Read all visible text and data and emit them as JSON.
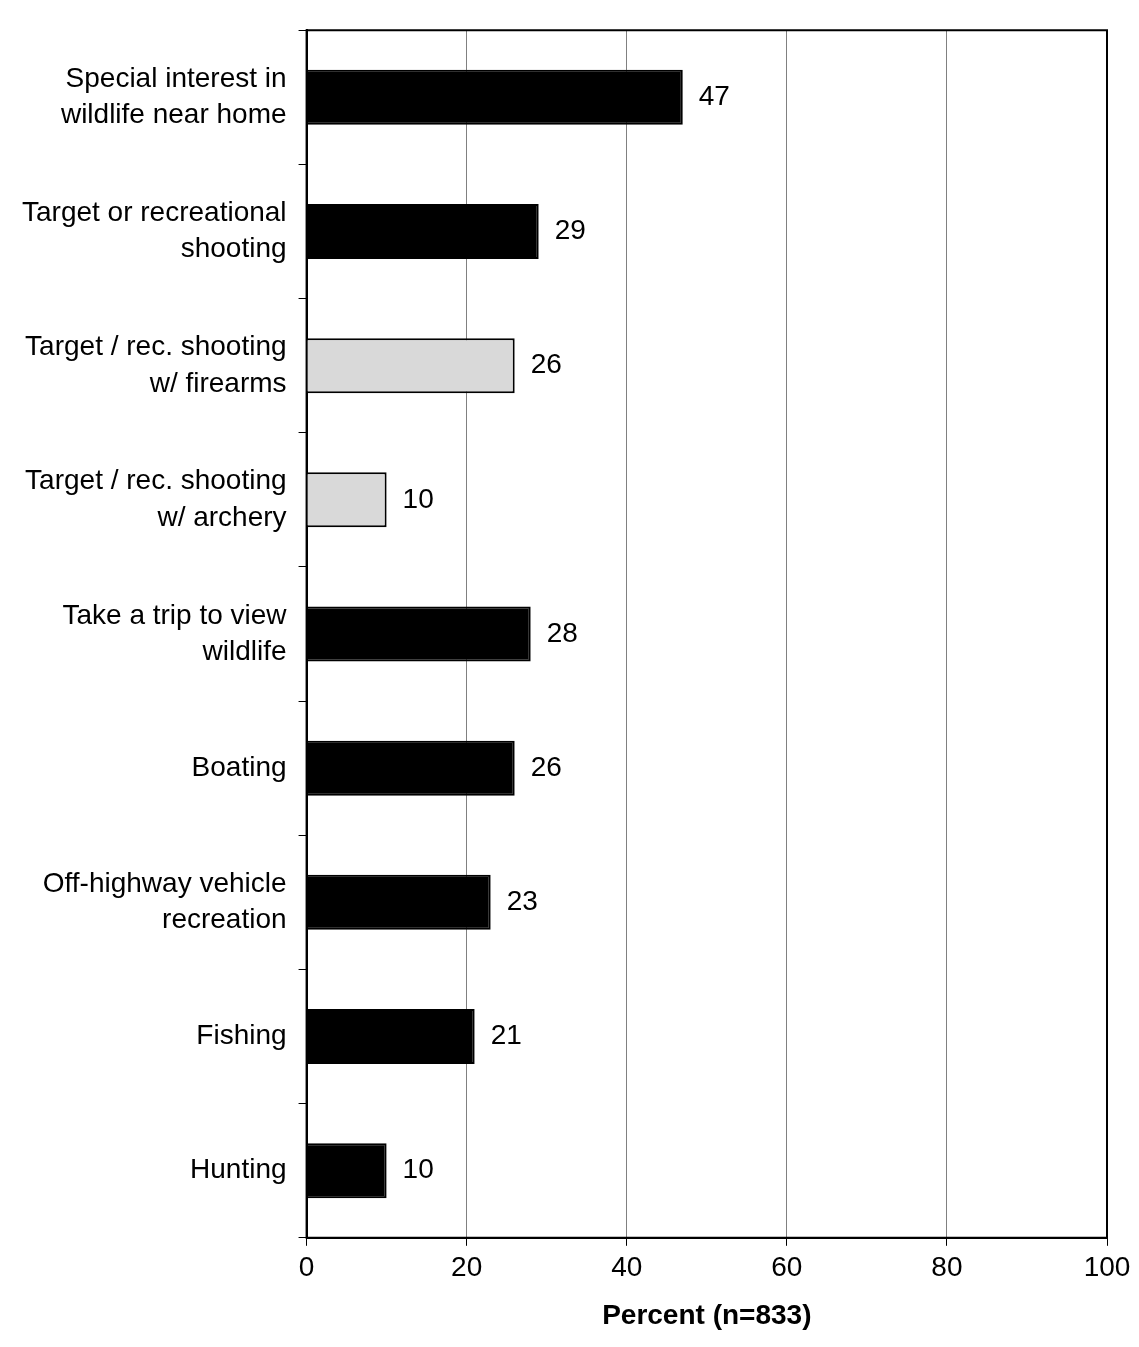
{
  "chart_data": {
    "type": "bar",
    "orientation": "horizontal",
    "xlabel": "Percent (n=833)",
    "categories": [
      "Special interest in wildlife near home",
      "Target or recreational shooting",
      "Target / rec. shooting w/ firearms",
      "Target / rec. shooting w/ archery",
      "Take a trip to view wildlife",
      "Boating",
      "Off-highway vehicle recreation",
      "Fishing",
      "Hunting"
    ],
    "values": [
      47,
      29,
      26,
      10,
      28,
      26,
      23,
      21,
      10
    ],
    "colors": [
      "#000000",
      "#000000",
      "#d9d9d9",
      "#d9d9d9",
      "#000000",
      "#000000",
      "#000000",
      "#000000",
      "#000000"
    ],
    "xlim": [
      0,
      100
    ],
    "xticks": [
      0,
      20,
      40,
      60,
      80,
      100
    ],
    "grid": "x",
    "data_labels": true,
    "legend": false
  }
}
